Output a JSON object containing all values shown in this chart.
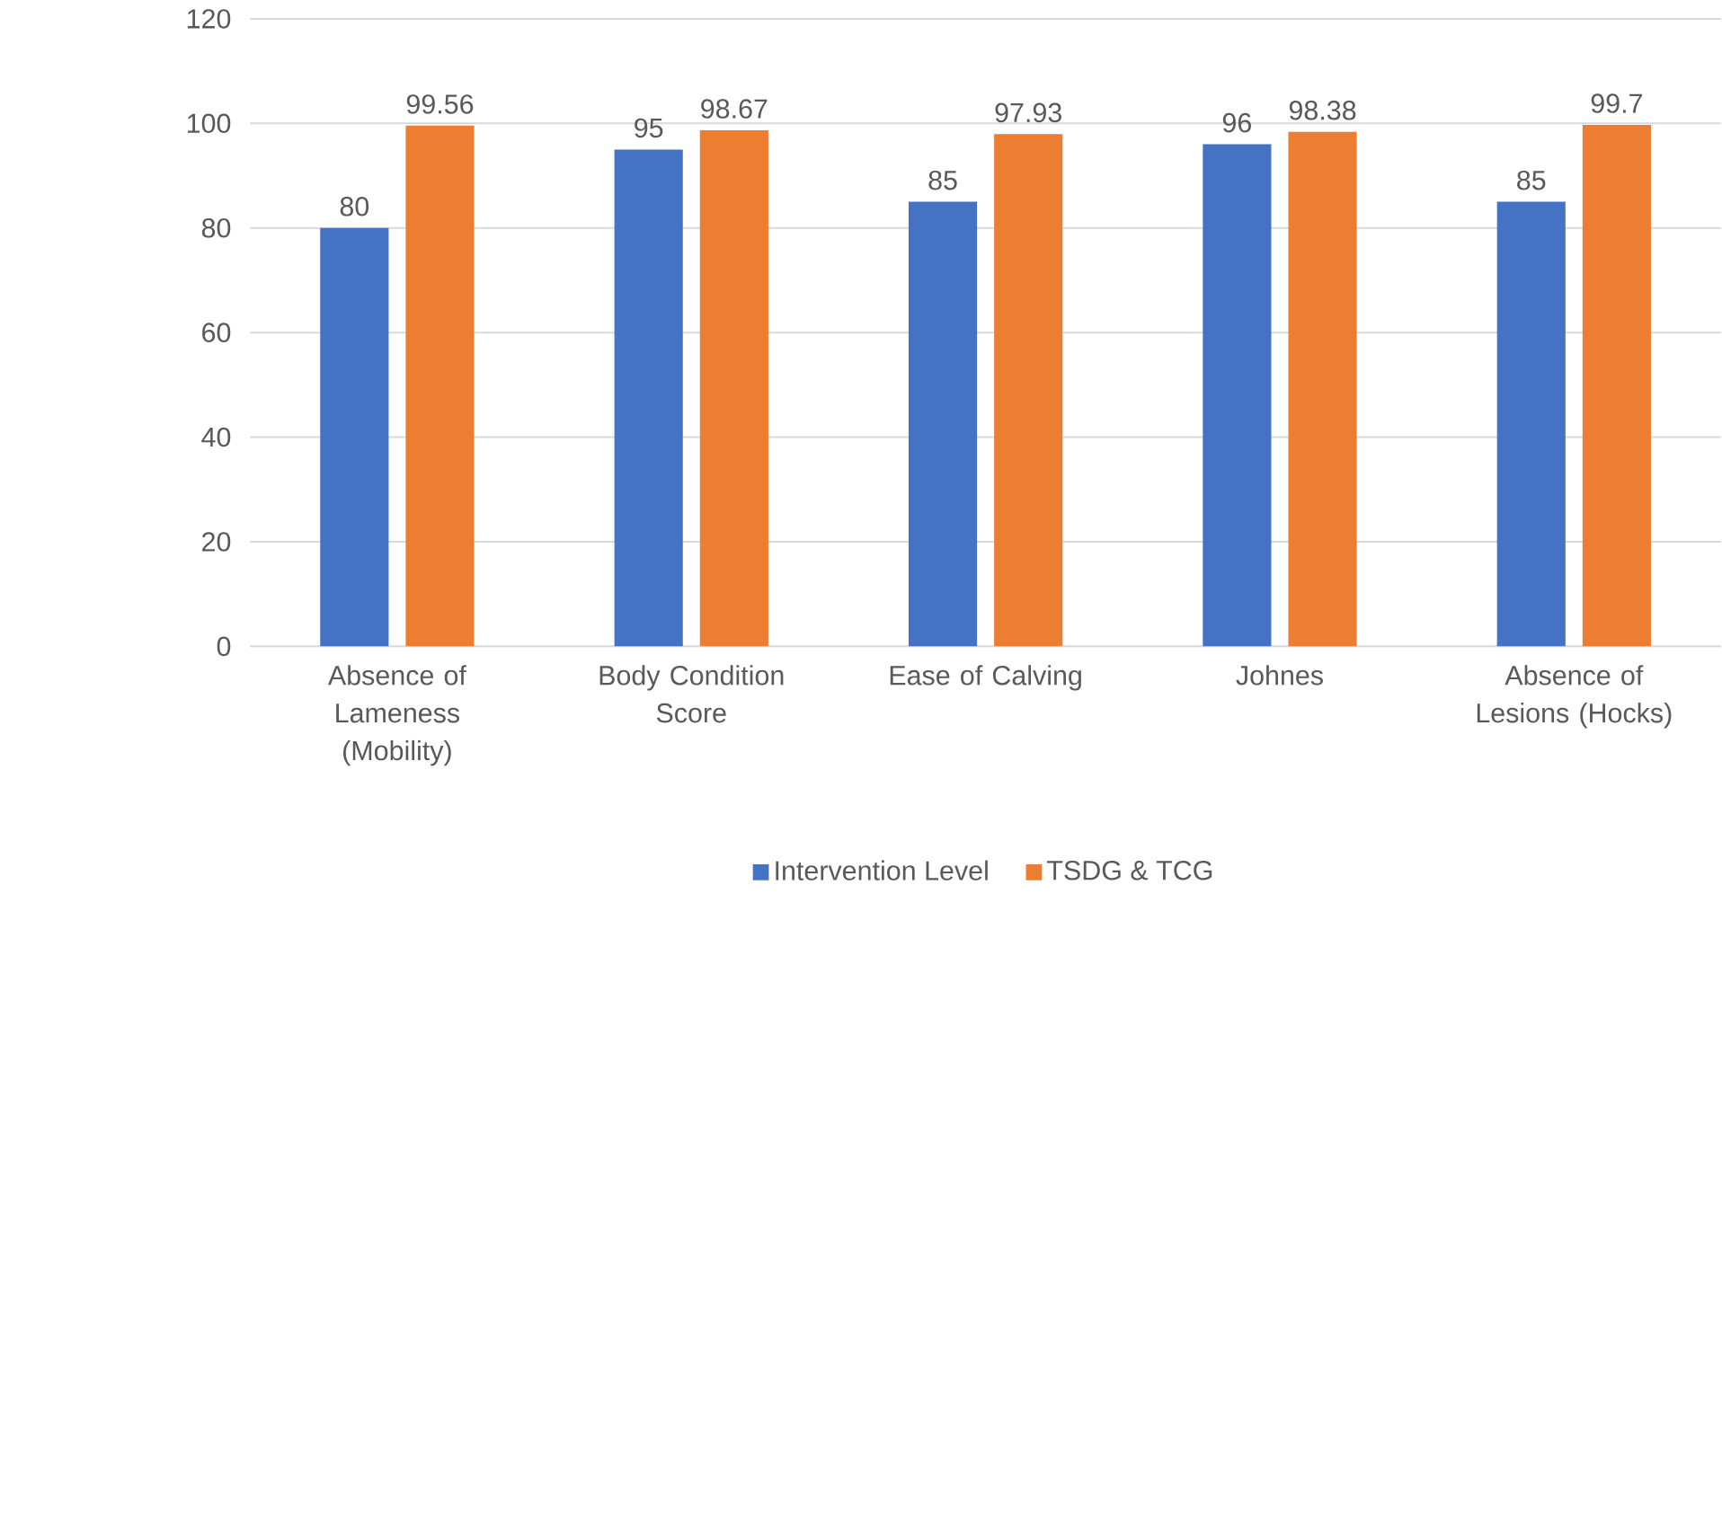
{
  "chart_data": {
    "type": "bar",
    "categories": [
      "Absence of Lameness (Mobility)",
      "Body Condition Score",
      "Ease of Calving",
      "Johnes",
      "Absence of Lesions (Hocks)"
    ],
    "series": [
      {
        "name": "Intervention Level",
        "color": "#4472c4",
        "values": [
          80,
          95,
          85,
          96,
          85
        ]
      },
      {
        "name": "TSDG & TCG",
        "color": "#ed7d31",
        "values": [
          99.56,
          98.67,
          97.93,
          98.38,
          99.7
        ]
      }
    ],
    "ylim": [
      0,
      120
    ],
    "yticks": [
      0,
      20,
      40,
      60,
      80,
      100,
      120
    ],
    "grid": "y",
    "legend": "bottom",
    "data_labels": true
  }
}
